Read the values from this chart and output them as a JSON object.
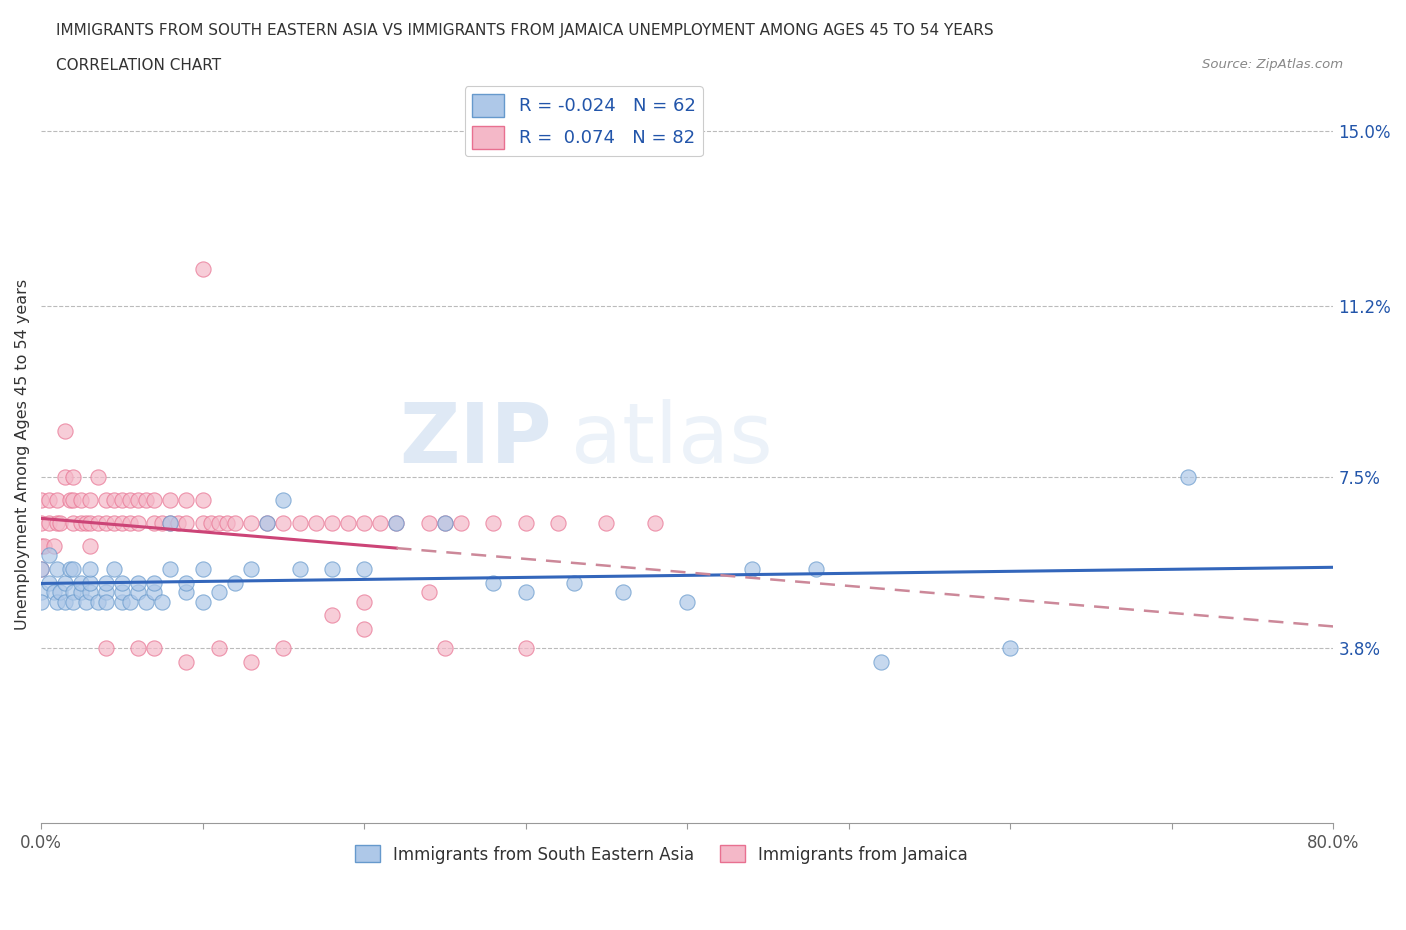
{
  "title_line1": "IMMIGRANTS FROM SOUTH EASTERN ASIA VS IMMIGRANTS FROM JAMAICA UNEMPLOYMENT AMONG AGES 45 TO 54 YEARS",
  "title_line2": "CORRELATION CHART",
  "source_text": "Source: ZipAtlas.com",
  "ylabel": "Unemployment Among Ages 45 to 54 years",
  "xlim": [
    0.0,
    0.8
  ],
  "ylim": [
    0.0,
    0.16
  ],
  "ytick_right_values": [
    0.038,
    0.075,
    0.112,
    0.15
  ],
  "ytick_right_labels": [
    "3.8%",
    "7.5%",
    "11.2%",
    "15.0%"
  ],
  "blue_fill_color": "#aec8e8",
  "blue_edge_color": "#6699cc",
  "pink_fill_color": "#f4b8c8",
  "pink_edge_color": "#e87090",
  "blue_line_color": "#3366bb",
  "pink_solid_color": "#cc4477",
  "pink_dash_color": "#cc8899",
  "R_blue": -0.024,
  "N_blue": 62,
  "R_pink": 0.074,
  "N_pink": 82,
  "legend_label_blue": "Immigrants from South Eastern Asia",
  "legend_label_pink": "Immigrants from Jamaica",
  "watermark_ZIP": "ZIP",
  "watermark_atlas": "atlas",
  "grid_color": "#bbbbbb",
  "background_color": "#ffffff",
  "legend_text_color": "#2255aa",
  "blue_scatter_x": [
    0.0,
    0.0,
    0.0,
    0.005,
    0.005,
    0.008,
    0.01,
    0.01,
    0.012,
    0.015,
    0.015,
    0.018,
    0.02,
    0.02,
    0.02,
    0.025,
    0.025,
    0.028,
    0.03,
    0.03,
    0.03,
    0.035,
    0.04,
    0.04,
    0.04,
    0.045,
    0.05,
    0.05,
    0.05,
    0.055,
    0.06,
    0.06,
    0.065,
    0.07,
    0.07,
    0.075,
    0.08,
    0.08,
    0.09,
    0.09,
    0.1,
    0.1,
    0.11,
    0.12,
    0.13,
    0.14,
    0.15,
    0.16,
    0.18,
    0.2,
    0.22,
    0.25,
    0.28,
    0.3,
    0.33,
    0.36,
    0.4,
    0.44,
    0.48,
    0.52,
    0.6,
    0.71
  ],
  "blue_scatter_y": [
    0.055,
    0.05,
    0.048,
    0.052,
    0.058,
    0.05,
    0.048,
    0.055,
    0.05,
    0.052,
    0.048,
    0.055,
    0.05,
    0.048,
    0.055,
    0.05,
    0.052,
    0.048,
    0.05,
    0.052,
    0.055,
    0.048,
    0.05,
    0.052,
    0.048,
    0.055,
    0.048,
    0.05,
    0.052,
    0.048,
    0.05,
    0.052,
    0.048,
    0.05,
    0.052,
    0.048,
    0.065,
    0.055,
    0.05,
    0.052,
    0.055,
    0.048,
    0.05,
    0.052,
    0.055,
    0.065,
    0.07,
    0.055,
    0.055,
    0.055,
    0.065,
    0.065,
    0.052,
    0.05,
    0.052,
    0.05,
    0.048,
    0.055,
    0.055,
    0.035,
    0.038,
    0.075
  ],
  "pink_scatter_x": [
    0.0,
    0.0,
    0.0,
    0.0,
    0.002,
    0.005,
    0.005,
    0.008,
    0.01,
    0.01,
    0.012,
    0.015,
    0.015,
    0.018,
    0.02,
    0.02,
    0.02,
    0.025,
    0.025,
    0.028,
    0.03,
    0.03,
    0.03,
    0.035,
    0.035,
    0.04,
    0.04,
    0.045,
    0.045,
    0.05,
    0.05,
    0.055,
    0.055,
    0.06,
    0.06,
    0.065,
    0.07,
    0.07,
    0.075,
    0.08,
    0.08,
    0.085,
    0.09,
    0.09,
    0.1,
    0.1,
    0.105,
    0.11,
    0.115,
    0.12,
    0.13,
    0.14,
    0.15,
    0.16,
    0.17,
    0.18,
    0.19,
    0.2,
    0.21,
    0.22,
    0.24,
    0.25,
    0.26,
    0.28,
    0.3,
    0.32,
    0.35,
    0.38,
    0.24,
    0.2,
    0.18,
    0.15,
    0.13,
    0.11,
    0.09,
    0.07,
    0.06,
    0.04,
    0.3,
    0.25,
    0.2,
    0.1
  ],
  "pink_scatter_y": [
    0.055,
    0.06,
    0.065,
    0.07,
    0.06,
    0.065,
    0.07,
    0.06,
    0.065,
    0.07,
    0.065,
    0.085,
    0.075,
    0.07,
    0.065,
    0.075,
    0.07,
    0.065,
    0.07,
    0.065,
    0.07,
    0.065,
    0.06,
    0.075,
    0.065,
    0.07,
    0.065,
    0.07,
    0.065,
    0.07,
    0.065,
    0.07,
    0.065,
    0.07,
    0.065,
    0.07,
    0.065,
    0.07,
    0.065,
    0.07,
    0.065,
    0.065,
    0.065,
    0.07,
    0.065,
    0.07,
    0.065,
    0.065,
    0.065,
    0.065,
    0.065,
    0.065,
    0.065,
    0.065,
    0.065,
    0.065,
    0.065,
    0.065,
    0.065,
    0.065,
    0.065,
    0.065,
    0.065,
    0.065,
    0.065,
    0.065,
    0.065,
    0.065,
    0.05,
    0.048,
    0.045,
    0.038,
    0.035,
    0.038,
    0.035,
    0.038,
    0.038,
    0.038,
    0.038,
    0.038,
    0.042,
    0.12
  ]
}
